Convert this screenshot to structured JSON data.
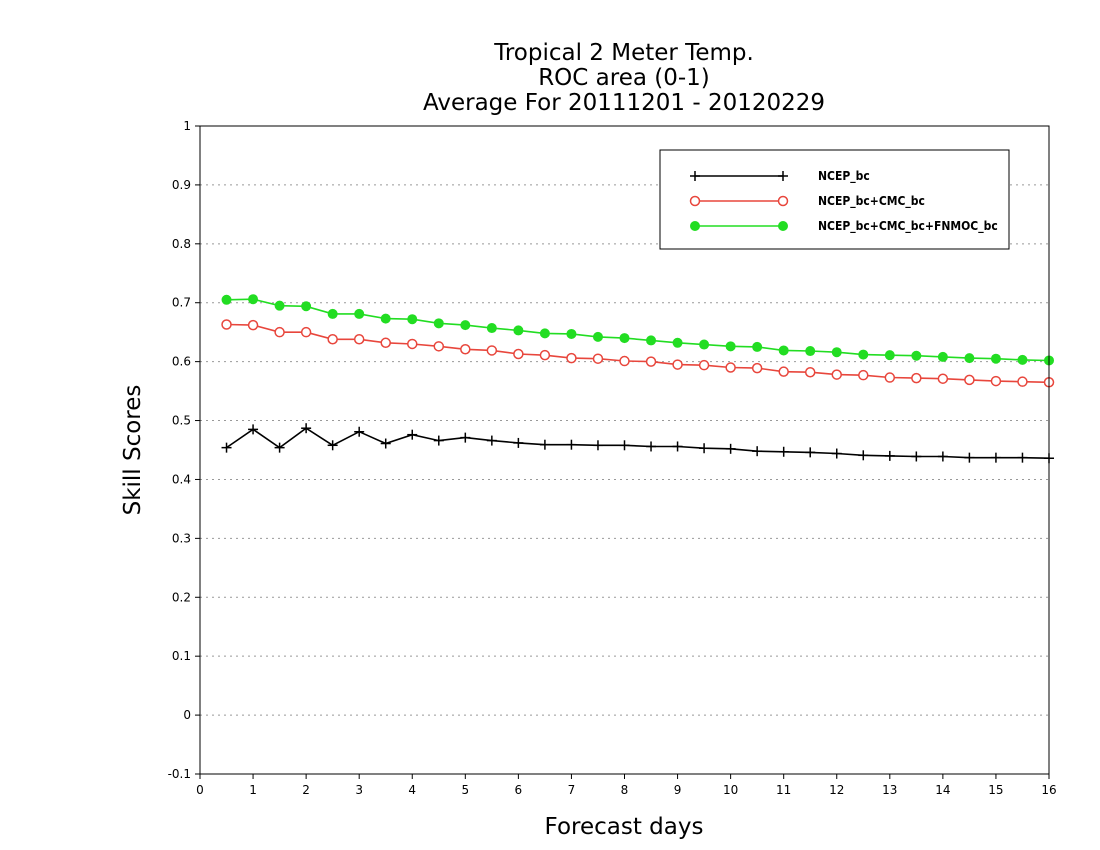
{
  "chart_data": {
    "type": "line",
    "title": [
      "Tropical 2 Meter Temp.",
      "ROC area (0-1)",
      "Average For 20111201 - 20120229"
    ],
    "xlabel": "Forecast days",
    "ylabel": "Skill Scores",
    "xlim": [
      0,
      16
    ],
    "ylim": [
      -0.1,
      1
    ],
    "xticks": [
      "0",
      "1",
      "2",
      "3",
      "4",
      "5",
      "6",
      "7",
      "8",
      "9",
      "10",
      "11",
      "12",
      "13",
      "14",
      "15",
      "16"
    ],
    "yticks": [
      "-0.1",
      "0",
      "0.1",
      "0.2",
      "0.3",
      "0.4",
      "0.5",
      "0.6",
      "0.7",
      "0.8",
      "0.9",
      "1"
    ],
    "grid": true,
    "legend_position": "top-right",
    "x": [
      0.5,
      1,
      1.5,
      2,
      2.5,
      3,
      3.5,
      4,
      4.5,
      5,
      5.5,
      6,
      6.5,
      7,
      7.5,
      8,
      8.5,
      9,
      9.5,
      10,
      10.5,
      11,
      11.5,
      12,
      12.5,
      13,
      13.5,
      14,
      14.5,
      15,
      15.5,
      16
    ],
    "series": [
      {
        "name": "NCEP_bc",
        "color": "#000000",
        "marker": "plus",
        "values": [
          0.454,
          0.485,
          0.454,
          0.487,
          0.458,
          0.481,
          0.461,
          0.476,
          0.466,
          0.471,
          0.466,
          0.462,
          0.459,
          0.459,
          0.458,
          0.458,
          0.456,
          0.456,
          0.453,
          0.452,
          0.448,
          0.447,
          0.446,
          0.444,
          0.441,
          0.44,
          0.439,
          0.439,
          0.437,
          0.437,
          0.437,
          0.436
        ]
      },
      {
        "name": "NCEP_bc+CMC_bc",
        "color": "#e8463c",
        "marker": "open-circle",
        "values": [
          0.663,
          0.662,
          0.65,
          0.65,
          0.638,
          0.638,
          0.632,
          0.63,
          0.626,
          0.621,
          0.619,
          0.613,
          0.611,
          0.606,
          0.605,
          0.601,
          0.6,
          0.595,
          0.594,
          0.59,
          0.589,
          0.583,
          0.582,
          0.578,
          0.577,
          0.573,
          0.572,
          0.571,
          0.569,
          0.567,
          0.566,
          0.565
        ]
      },
      {
        "name": "NCEP_bc+CMC_bc+FNMOC_bc",
        "color": "#22dd22",
        "marker": "filled-circle",
        "values": [
          0.705,
          0.706,
          0.695,
          0.694,
          0.681,
          0.681,
          0.673,
          0.672,
          0.665,
          0.662,
          0.657,
          0.653,
          0.648,
          0.647,
          0.642,
          0.64,
          0.636,
          0.632,
          0.629,
          0.626,
          0.625,
          0.619,
          0.618,
          0.616,
          0.612,
          0.611,
          0.61,
          0.608,
          0.606,
          0.605,
          0.603,
          0.602
        ]
      }
    ]
  }
}
